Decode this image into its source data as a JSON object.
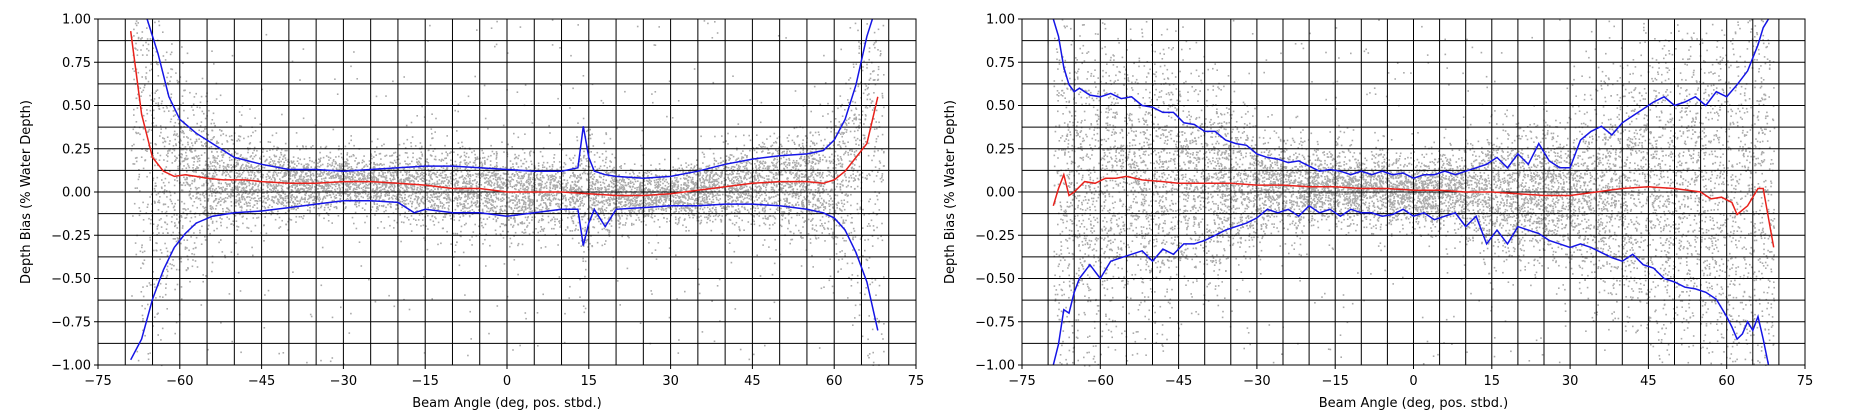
{
  "figure": {
    "panels": [
      {
        "id": "left",
        "xlabel": "Beam Angle (deg, pos. stbd.)",
        "ylabel": "Depth Bias (% Water Depth)"
      },
      {
        "id": "right",
        "xlabel": "Beam Angle (deg, pos. stbd.)",
        "ylabel": "Depth Bias (% Water Depth)"
      }
    ]
  },
  "chart_data": [
    {
      "type": "scatter",
      "title": "",
      "xlabel": "Beam Angle (deg, pos. stbd.)",
      "ylabel": "Depth Bias (% Water Depth)",
      "xlim": [
        -75,
        75
      ],
      "ylim": [
        -1.0,
        1.0
      ],
      "xticks": [
        -75,
        -60,
        -45,
        -30,
        -15,
        0,
        15,
        30,
        45,
        60,
        75
      ],
      "xtick_labels": [
        "−75",
        "−60",
        "−45",
        "−30",
        "−15",
        "0",
        "15",
        "30",
        "45",
        "60",
        "75"
      ],
      "yticks": [
        -1.0,
        -0.75,
        -0.5,
        -0.25,
        0.0,
        0.25,
        0.5,
        0.75,
        1.0
      ],
      "ytick_labels": [
        "−1.00",
        "−0.75",
        "−0.50",
        "−0.25",
        "0.00",
        "0.25",
        "0.50",
        "0.75",
        "1.00"
      ],
      "grid": true,
      "scatter_color": "#aaaaaa",
      "scatter_x_range": [
        -69,
        69
      ],
      "series": [
        {
          "role": "mean",
          "color": "#e8211b",
          "x": [
            -69,
            -67,
            -65,
            -63,
            -61,
            -59,
            -57,
            -55,
            -52,
            -48,
            -45,
            -40,
            -35,
            -30,
            -25,
            -20,
            -15,
            -10,
            -5,
            0,
            5,
            10,
            15,
            20,
            25,
            30,
            35,
            40,
            45,
            50,
            55,
            58,
            60,
            62,
            64,
            66,
            68
          ],
          "values": [
            0.93,
            0.45,
            0.2,
            0.12,
            0.09,
            0.1,
            0.09,
            0.08,
            0.07,
            0.07,
            0.06,
            0.05,
            0.05,
            0.06,
            0.06,
            0.05,
            0.04,
            0.02,
            0.02,
            0.0,
            0.0,
            0.0,
            -0.01,
            -0.02,
            -0.02,
            -0.01,
            0.01,
            0.03,
            0.05,
            0.06,
            0.06,
            0.05,
            0.07,
            0.12,
            0.2,
            0.28,
            0.55
          ]
        },
        {
          "role": "upper",
          "color": "#1515e6",
          "x": [
            -66,
            -64,
            -62,
            -60,
            -57,
            -54,
            -50,
            -45,
            -40,
            -35,
            -30,
            -25,
            -20,
            -15,
            -10,
            -5,
            0,
            5,
            10,
            13,
            14,
            15,
            16,
            18,
            20,
            25,
            30,
            35,
            40,
            45,
            50,
            55,
            58,
            60,
            62,
            64,
            66,
            67
          ],
          "values": [
            1.0,
            0.8,
            0.55,
            0.42,
            0.34,
            0.28,
            0.2,
            0.16,
            0.13,
            0.13,
            0.12,
            0.13,
            0.14,
            0.15,
            0.15,
            0.14,
            0.13,
            0.12,
            0.12,
            0.14,
            0.38,
            0.2,
            0.12,
            0.1,
            0.09,
            0.08,
            0.09,
            0.12,
            0.16,
            0.19,
            0.21,
            0.22,
            0.24,
            0.3,
            0.42,
            0.62,
            0.9,
            1.0
          ]
        },
        {
          "role": "lower",
          "color": "#1515e6",
          "x": [
            -69,
            -67,
            -65,
            -63,
            -61,
            -59,
            -57,
            -54,
            -50,
            -45,
            -40,
            -35,
            -30,
            -25,
            -20,
            -17,
            -15,
            -10,
            -5,
            0,
            5,
            10,
            13,
            14,
            15,
            16,
            18,
            20,
            25,
            30,
            35,
            40,
            45,
            50,
            55,
            58,
            60,
            62,
            64,
            66,
            68
          ],
          "values": [
            -0.97,
            -0.85,
            -0.62,
            -0.45,
            -0.32,
            -0.24,
            -0.18,
            -0.14,
            -0.12,
            -0.11,
            -0.09,
            -0.07,
            -0.05,
            -0.05,
            -0.06,
            -0.12,
            -0.1,
            -0.12,
            -0.12,
            -0.14,
            -0.12,
            -0.1,
            -0.1,
            -0.31,
            -0.18,
            -0.1,
            -0.2,
            -0.1,
            -0.09,
            -0.08,
            -0.08,
            -0.07,
            -0.07,
            -0.08,
            -0.1,
            -0.12,
            -0.15,
            -0.22,
            -0.35,
            -0.52,
            -0.8
          ]
        }
      ]
    },
    {
      "type": "scatter",
      "title": "",
      "xlabel": "Beam Angle (deg, pos. stbd.)",
      "ylabel": "Depth Bias (% Water Depth)",
      "xlim": [
        -75,
        75
      ],
      "ylim": [
        -1.0,
        1.0
      ],
      "xticks": [
        -75,
        -60,
        -45,
        -30,
        -15,
        0,
        15,
        30,
        45,
        60,
        75
      ],
      "xtick_labels": [
        "−75",
        "−60",
        "−45",
        "−30",
        "−15",
        "0",
        "15",
        "30",
        "45",
        "60",
        "75"
      ],
      "yticks": [
        -1.0,
        -0.75,
        -0.5,
        -0.25,
        0.0,
        0.25,
        0.5,
        0.75,
        1.0
      ],
      "ytick_labels": [
        "−1.00",
        "−0.75",
        "−0.50",
        "−0.25",
        "0.00",
        "0.25",
        "0.50",
        "0.75",
        "1.00"
      ],
      "grid": true,
      "scatter_color": "#aaaaaa",
      "scatter_x_range": [
        -69,
        69
      ],
      "series": [
        {
          "role": "mean",
          "color": "#e8211b",
          "x": [
            -69,
            -68,
            -67,
            -66,
            -65,
            -63,
            -61,
            -59,
            -57,
            -55,
            -52,
            -48,
            -45,
            -40,
            -35,
            -30,
            -25,
            -20,
            -15,
            -10,
            -5,
            0,
            5,
            10,
            15,
            20,
            25,
            30,
            35,
            40,
            45,
            50,
            55,
            57,
            59,
            61,
            62,
            64,
            66,
            67,
            69
          ],
          "values": [
            -0.08,
            0.02,
            0.1,
            -0.02,
            0.0,
            0.06,
            0.05,
            0.08,
            0.08,
            0.09,
            0.07,
            0.06,
            0.05,
            0.05,
            0.05,
            0.04,
            0.04,
            0.03,
            0.03,
            0.02,
            0.02,
            0.01,
            0.01,
            0.0,
            0.0,
            -0.01,
            -0.02,
            -0.02,
            0.0,
            0.02,
            0.03,
            0.02,
            0.0,
            -0.04,
            -0.03,
            -0.06,
            -0.13,
            -0.08,
            0.02,
            0.02,
            -0.32
          ]
        },
        {
          "role": "upper",
          "color": "#1515e6",
          "x": [
            -69,
            -68,
            -67,
            -66,
            -65,
            -64,
            -62,
            -60,
            -58,
            -56,
            -54,
            -52,
            -50,
            -48,
            -46,
            -44,
            -42,
            -40,
            -38,
            -36,
            -34,
            -32,
            -30,
            -28,
            -26,
            -24,
            -22,
            -20,
            -18,
            -16,
            -14,
            -12,
            -10,
            -8,
            -6,
            -4,
            -2,
            0,
            2,
            4,
            6,
            8,
            10,
            12,
            14,
            16,
            18,
            20,
            22,
            24,
            26,
            28,
            30,
            32,
            34,
            36,
            38,
            40,
            42,
            44,
            46,
            48,
            50,
            52,
            54,
            56,
            58,
            60,
            62,
            64,
            66,
            67,
            68
          ],
          "values": [
            1.0,
            0.9,
            0.72,
            0.62,
            0.58,
            0.6,
            0.56,
            0.55,
            0.57,
            0.54,
            0.55,
            0.5,
            0.49,
            0.46,
            0.46,
            0.4,
            0.39,
            0.35,
            0.35,
            0.3,
            0.28,
            0.27,
            0.22,
            0.2,
            0.19,
            0.17,
            0.18,
            0.15,
            0.12,
            0.13,
            0.12,
            0.1,
            0.12,
            0.1,
            0.12,
            0.1,
            0.11,
            0.08,
            0.1,
            0.1,
            0.12,
            0.1,
            0.12,
            0.14,
            0.16,
            0.2,
            0.14,
            0.22,
            0.16,
            0.28,
            0.18,
            0.14,
            0.14,
            0.3,
            0.35,
            0.38,
            0.33,
            0.4,
            0.44,
            0.48,
            0.52,
            0.55,
            0.5,
            0.52,
            0.55,
            0.5,
            0.58,
            0.55,
            0.62,
            0.7,
            0.85,
            0.95,
            1.0
          ]
        },
        {
          "role": "lower",
          "color": "#1515e6",
          "x": [
            -69,
            -68,
            -67,
            -66,
            -65,
            -64,
            -62,
            -60,
            -58,
            -56,
            -54,
            -52,
            -50,
            -48,
            -46,
            -44,
            -42,
            -40,
            -38,
            -36,
            -34,
            -32,
            -30,
            -28,
            -26,
            -24,
            -22,
            -20,
            -18,
            -16,
            -14,
            -12,
            -10,
            -8,
            -6,
            -4,
            -2,
            0,
            2,
            4,
            6,
            8,
            10,
            12,
            14,
            16,
            18,
            20,
            22,
            24,
            26,
            28,
            30,
            32,
            34,
            36,
            38,
            40,
            42,
            44,
            46,
            48,
            50,
            52,
            54,
            56,
            58,
            60,
            61,
            62,
            63,
            64,
            65,
            66,
            67,
            68
          ],
          "values": [
            -1.0,
            -0.88,
            -0.68,
            -0.7,
            -0.58,
            -0.5,
            -0.42,
            -0.5,
            -0.4,
            -0.38,
            -0.36,
            -0.34,
            -0.4,
            -0.33,
            -0.36,
            -0.3,
            -0.3,
            -0.28,
            -0.25,
            -0.22,
            -0.2,
            -0.18,
            -0.15,
            -0.1,
            -0.12,
            -0.1,
            -0.14,
            -0.08,
            -0.12,
            -0.1,
            -0.14,
            -0.1,
            -0.12,
            -0.12,
            -0.14,
            -0.13,
            -0.1,
            -0.14,
            -0.12,
            -0.16,
            -0.14,
            -0.12,
            -0.2,
            -0.14,
            -0.3,
            -0.22,
            -0.3,
            -0.2,
            -0.22,
            -0.24,
            -0.28,
            -0.3,
            -0.32,
            -0.3,
            -0.32,
            -0.35,
            -0.38,
            -0.4,
            -0.36,
            -0.42,
            -0.44,
            -0.5,
            -0.52,
            -0.55,
            -0.56,
            -0.58,
            -0.62,
            -0.72,
            -0.78,
            -0.85,
            -0.82,
            -0.75,
            -0.8,
            -0.72,
            -0.85,
            -1.0
          ]
        }
      ]
    }
  ]
}
